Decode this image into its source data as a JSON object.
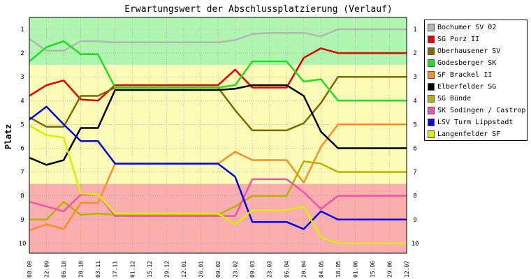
{
  "chart_data": {
    "type": "line",
    "title": "Erwartungswert der Abschlussplatzierung (Verlauf)",
    "ylabel": "Platz",
    "xlabel": "",
    "ylim": [
      1,
      10
    ],
    "y_inverted": true,
    "y_ticks": [
      "1",
      "2",
      "3",
      "4",
      "5",
      "6",
      "7",
      "8",
      "9",
      "10"
    ],
    "categories": [
      "08.09",
      "22.09",
      "06.10",
      "20.10",
      "03.11",
      "17.11",
      "01.12",
      "15.12",
      "29.12",
      "12.01",
      "26.01",
      "09.02",
      "23.02",
      "09.03",
      "23.03",
      "06.04",
      "20.04",
      "04.05",
      "18.05",
      "01.06",
      "15.06",
      "29.06",
      "12.07"
    ],
    "bands": [
      {
        "from": 0.5,
        "to": 2.5,
        "color": "#b0f5b0"
      },
      {
        "from": 2.5,
        "to": 7.5,
        "color": "#fdfdb8"
      },
      {
        "from": 7.5,
        "to": 10.5,
        "color": "#fbaeae"
      }
    ],
    "grid": true,
    "legend_position": "right",
    "series": [
      {
        "name": "Bochumer SV 02",
        "color": "#b4b4b4",
        "values": [
          1.4,
          1.9,
          1.9,
          1.5,
          1.5,
          1.55,
          1.55,
          1.55,
          1.55,
          1.55,
          1.55,
          1.55,
          1.45,
          1.2,
          1.15,
          1.15,
          1.15,
          1.3,
          1.0,
          1.0,
          1.0,
          1.0,
          1.0
        ]
      },
      {
        "name": "SG Porz II",
        "color": "#e00000",
        "values": [
          3.8,
          3.35,
          3.15,
          3.95,
          4.0,
          3.35,
          3.35,
          3.35,
          3.35,
          3.35,
          3.35,
          3.35,
          2.7,
          3.45,
          3.45,
          3.45,
          2.2,
          1.8,
          2.0,
          2.0,
          2.0,
          2.0,
          2.0
        ]
      },
      {
        "name": "Oberhausener SV",
        "color": "#7a6a00",
        "values": [
          4.7,
          5.1,
          5.1,
          3.8,
          3.8,
          3.45,
          3.45,
          3.45,
          3.45,
          3.45,
          3.45,
          3.45,
          4.4,
          5.25,
          5.25,
          5.25,
          4.95,
          4.1,
          3.0,
          3.0,
          3.0,
          3.0,
          3.0
        ]
      },
      {
        "name": "Godesberger SK",
        "color": "#22dd22",
        "values": [
          2.35,
          1.75,
          1.5,
          2.05,
          2.05,
          3.45,
          3.45,
          3.45,
          3.45,
          3.45,
          3.45,
          3.45,
          3.35,
          2.35,
          2.35,
          2.35,
          3.2,
          3.1,
          4.0,
          4.0,
          4.0,
          4.0,
          4.0
        ]
      },
      {
        "name": "SF Brackel II",
        "color": "#ff8c28",
        "values": [
          9.45,
          9.2,
          9.4,
          8.3,
          8.3,
          6.65,
          6.65,
          6.65,
          6.65,
          6.65,
          6.65,
          6.65,
          6.15,
          6.5,
          6.5,
          6.5,
          7.45,
          5.95,
          5.0,
          5.0,
          5.0,
          5.0,
          5.0
        ]
      },
      {
        "name": "Elberfelder SG",
        "color": "#000000",
        "values": [
          6.4,
          6.7,
          6.5,
          5.15,
          5.15,
          3.55,
          3.55,
          3.55,
          3.55,
          3.55,
          3.55,
          3.55,
          3.5,
          3.35,
          3.35,
          3.35,
          3.8,
          5.3,
          6.0,
          6.0,
          6.0,
          6.0,
          6.0
        ]
      },
      {
        "name": "SG Bünde",
        "color": "#b4b400",
        "values": [
          9.0,
          9.0,
          8.25,
          8.8,
          8.75,
          8.8,
          8.8,
          8.8,
          8.8,
          8.8,
          8.8,
          8.8,
          8.45,
          8.0,
          8.0,
          8.0,
          6.55,
          6.65,
          7.0,
          7.0,
          7.0,
          7.0,
          7.0
        ]
      },
      {
        "name": "SK Sodingen / Castrop",
        "color": "#ee55aa",
        "values": [
          8.25,
          8.45,
          8.65,
          7.95,
          7.95,
          8.85,
          8.85,
          8.85,
          8.85,
          8.85,
          8.85,
          8.85,
          8.85,
          7.3,
          7.3,
          7.3,
          7.85,
          8.55,
          8.0,
          8.0,
          8.0,
          8.0,
          8.0
        ]
      },
      {
        "name": "LSV Turm Lippstadt",
        "color": "#0000ee",
        "values": [
          4.8,
          4.25,
          5.0,
          5.7,
          5.7,
          6.65,
          6.65,
          6.65,
          6.65,
          6.65,
          6.65,
          6.65,
          7.2,
          9.1,
          9.1,
          9.1,
          9.4,
          8.65,
          9.0,
          9.0,
          9.0,
          9.0,
          9.0
        ]
      },
      {
        "name": "Langenfelder SF",
        "color": "#d6f000",
        "values": [
          5.05,
          5.45,
          5.55,
          7.9,
          7.95,
          8.75,
          8.75,
          8.75,
          8.75,
          8.75,
          8.75,
          8.75,
          9.2,
          8.6,
          8.6,
          8.6,
          8.45,
          9.75,
          10.0,
          10.0,
          10.0,
          10.0,
          10.0
        ]
      }
    ]
  }
}
